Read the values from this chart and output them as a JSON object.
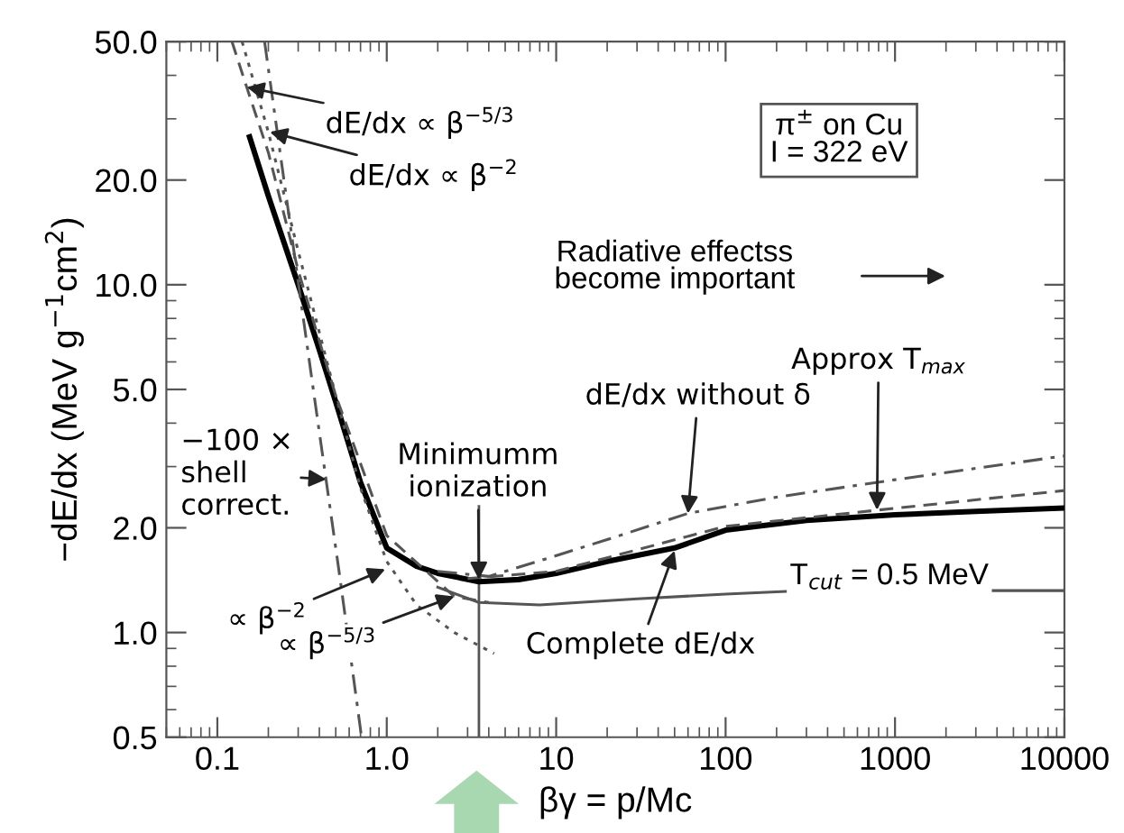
{
  "chart_data": {
    "type": "line",
    "log": "xy",
    "xlabel": "βγ = p/Mc",
    "ylabel": "−dE/dx (MeV g$^{−1}$cm$^{2}$)",
    "xlim": [
      0.05,
      10000
    ],
    "ylim": [
      0.5,
      50
    ],
    "xticks": [
      0.1,
      {
        "value": 1,
        "label": "1.0"
      },
      10,
      100,
      1000,
      10000
    ],
    "yticks": [
      0.5,
      {
        "value": 1,
        "label": "1.0"
      },
      {
        "value": 2,
        "label": "2.0"
      },
      {
        "value": 5,
        "label": "5.0"
      },
      {
        "value": 10,
        "label": "10.0"
      },
      {
        "value": 20,
        "label": "20.0"
      },
      {
        "value": 50,
        "label": "50.0"
      }
    ],
    "grid": false,
    "legend": false,
    "series": [
      {
        "color": "#000000",
        "line_style": "solid",
        "x": [
          0.155,
          0.2,
          0.3,
          0.4,
          0.5,
          0.7,
          1.0,
          1.5,
          2,
          3.5,
          6,
          10,
          20,
          50,
          100,
          300,
          1000,
          3000,
          10000
        ],
        "values": [
          26.6,
          18,
          10,
          6.5,
          4.6,
          2.7,
          1.75,
          1.55,
          1.48,
          1.4,
          1.42,
          1.48,
          1.6,
          1.75,
          1.97,
          2.1,
          2.18,
          2.23,
          2.28
        ]
      },
      {
        "color": "#555555",
        "line_style": "dashdot",
        "x": [
          2,
          4,
          8.4,
          20,
          60,
          200,
          1000,
          10000
        ],
        "values": [
          1.5,
          1.45,
          1.62,
          1.85,
          2.2,
          2.45,
          2.75,
          3.22
        ]
      },
      {
        "color": "#555555",
        "line_style": "dashed",
        "x": [
          3,
          10,
          100,
          800,
          10000
        ],
        "values": [
          1.43,
          1.5,
          2.02,
          2.25,
          2.56
        ]
      },
      {
        "color": "#555555",
        "line_style": "solid",
        "x": [
          2,
          3.5,
          8,
          30,
          100,
          300,
          10000
        ],
        "values": [
          1.35,
          1.22,
          1.2,
          1.25,
          1.29,
          1.32,
          1.32
        ]
      },
      {
        "color": "#555555",
        "line_style": "dashed",
        "x": [
          0.122,
          0.149,
          0.2,
          0.3,
          0.5,
          1,
          2.5,
          4
        ],
        "values": [
          50,
          37,
          24,
          11,
          4.8,
          1.9,
          1.27,
          1.22
        ]
      },
      {
        "color": "#555555",
        "line_style": "dotted",
        "x": [
          0.14,
          0.2,
          0.3,
          0.5,
          0.7,
          1.0,
          1.5,
          2.5,
          4.3
        ],
        "values": [
          50,
          27.5,
          12.5,
          4.8,
          2.6,
          1.6,
          1.2,
          1.0,
          0.87
        ]
      },
      {
        "color": "#555555",
        "line_style": "dashdot",
        "x": [
          0.19,
          0.375,
          0.53,
          0.71
        ],
        "values": [
          50,
          4.7,
          1.43,
          0.5
        ]
      }
    ],
    "ref_lines": [
      {
        "axis": "x",
        "value": 3.5,
        "color": "#555555"
      }
    ],
    "annotations": [
      {
        "text": "dE/dx ∝ β$^{−5/3}$",
        "x": 0.149,
        "y": 37
      },
      {
        "text": "dE/dx ∝ β$^{−2}$",
        "x": 0.204,
        "y": 27.5
      },
      "π$^{±}$ on Cu\nI = 322 eV",
      "Radiative effectss\nbecome important",
      {
        "text": "Approx T$_{max}$",
        "x": 783,
        "y": 2.25
      },
      {
        "text": "dE/dx without δ",
        "x": 60,
        "y": 2.2
      },
      {
        "text": "−100 ×\nshell\ncorrect.",
        "x": 0.44,
        "y": 2.76
      },
      {
        "text": "Minimumm\nionization",
        "x": 3.5,
        "y": 1.42
      },
      {
        "text": "∝ β$^{−2}$",
        "x": 0.98,
        "y": 1.52
      },
      {
        "text": "∝ β$^{−5/3}$",
        "x": 2.5,
        "y": 1.27
      },
      {
        "text": "Complete dE/dx",
        "x": 50,
        "y": 1.72
      },
      "T$_{cut}$ = 0.5 MeV"
    ]
  }
}
